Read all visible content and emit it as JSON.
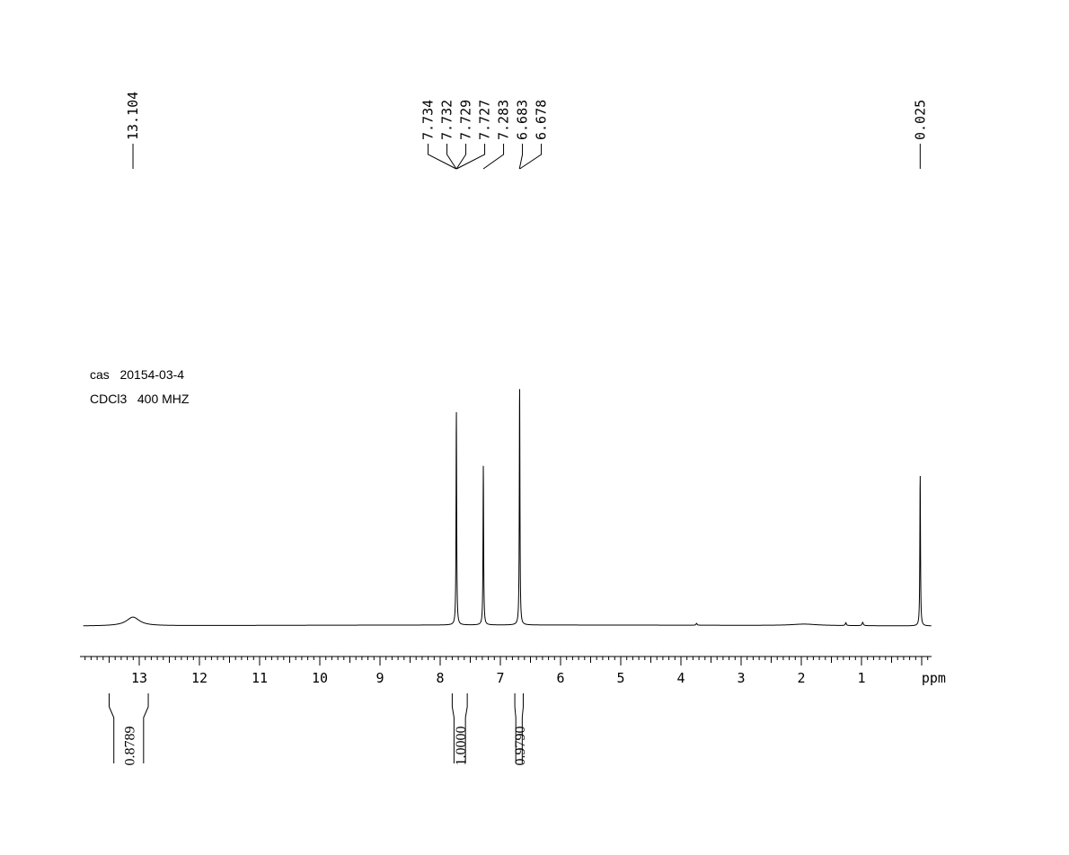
{
  "sample": {
    "cas_line": "cas   20154-03-4",
    "solvent_line": "CDCl3   400 MHZ"
  },
  "colors": {
    "ink": "#000000",
    "background": "#ffffff"
  },
  "chart_data": {
    "type": "line",
    "title": "",
    "xlabel": "ppm",
    "ylabel": "",
    "xlim": [
      13.93,
      -0.16
    ],
    "x_reversed": true,
    "ylim": [
      0,
      1.0
    ],
    "grid": false,
    "x_tick_labels": [
      "13",
      "12",
      "11",
      "10",
      "9",
      "8",
      "7",
      "6",
      "5",
      "4",
      "3",
      "2",
      "1"
    ],
    "peak_labels": [
      {
        "label": "13.104",
        "value": 13.104,
        "group": 1
      },
      {
        "label": "7.734",
        "value": 7.734,
        "group": 2
      },
      {
        "label": "7.732",
        "value": 7.732,
        "group": 2
      },
      {
        "label": "7.729",
        "value": 7.729,
        "group": 2
      },
      {
        "label": "7.727",
        "value": 7.727,
        "group": 2
      },
      {
        "label": "7.283",
        "value": 7.283,
        "group": 3
      },
      {
        "label": "6.683",
        "value": 6.683,
        "group": 4
      },
      {
        "label": "6.678",
        "value": 6.678,
        "group": 4
      },
      {
        "label": "0.025",
        "value": 0.025,
        "group": 5
      }
    ],
    "peaks": [
      {
        "shift": 13.104,
        "height": 0.036,
        "width": 0.13
      },
      {
        "shift": 7.731,
        "height": 0.89,
        "width": 0.006
      },
      {
        "shift": 7.283,
        "height": 0.66,
        "width": 0.006
      },
      {
        "shift": 6.68,
        "height": 1.0,
        "width": 0.006
      },
      {
        "shift": 0.025,
        "height": 0.63,
        "width": 0.006
      },
      {
        "shift": 3.74,
        "height": 0.008,
        "width": 0.01
      },
      {
        "shift": 1.26,
        "height": 0.012,
        "width": 0.01
      },
      {
        "shift": 0.98,
        "height": 0.014,
        "width": 0.012
      },
      {
        "shift": 1.95,
        "height": 0.006,
        "width": 0.25
      }
    ],
    "integrals": [
      {
        "label": "0.8789",
        "from": 13.5,
        "to": 12.85
      },
      {
        "label": "1.0000",
        "from": 7.8,
        "to": 7.55
      },
      {
        "label": "0.9790",
        "from": 6.76,
        "to": 6.62
      }
    ]
  }
}
